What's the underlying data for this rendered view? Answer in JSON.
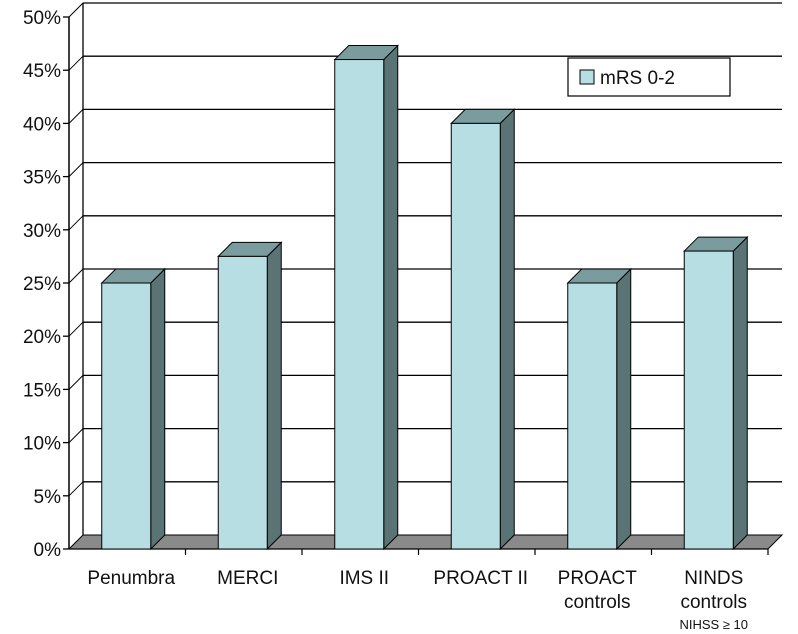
{
  "chart_data": {
    "type": "bar",
    "categories": [
      "Penumbra",
      "MERCI",
      "IMS II",
      "PROACT II",
      "PROACT controls",
      "NINDS controls NIHSS ≥ 10"
    ],
    "category_lines": [
      [
        "Penumbra"
      ],
      [
        "MERCI"
      ],
      [
        "IMS II"
      ],
      [
        "PROACT II"
      ],
      [
        "PROACT",
        "controls"
      ],
      [
        "NINDS",
        "controls",
        "NIHSS ≥ 10"
      ]
    ],
    "series": [
      {
        "name": "mRS 0-2",
        "values": [
          25,
          27.5,
          46,
          40,
          25,
          28
        ]
      }
    ],
    "yticks": [
      "0%",
      "5%",
      "10%",
      "15%",
      "20%",
      "25%",
      "30%",
      "35%",
      "40%",
      "45%",
      "50%"
    ],
    "ylim": [
      0,
      50
    ],
    "grid": true,
    "legend_position": "top-right",
    "title": "",
    "xlabel": "",
    "ylabel": "",
    "colors": {
      "bar_front": "#b7dfe3",
      "bar_side": "#5a7475",
      "bar_top": "#7a9c9e",
      "floor": "#8a8a8a",
      "grid": "#000000"
    }
  }
}
